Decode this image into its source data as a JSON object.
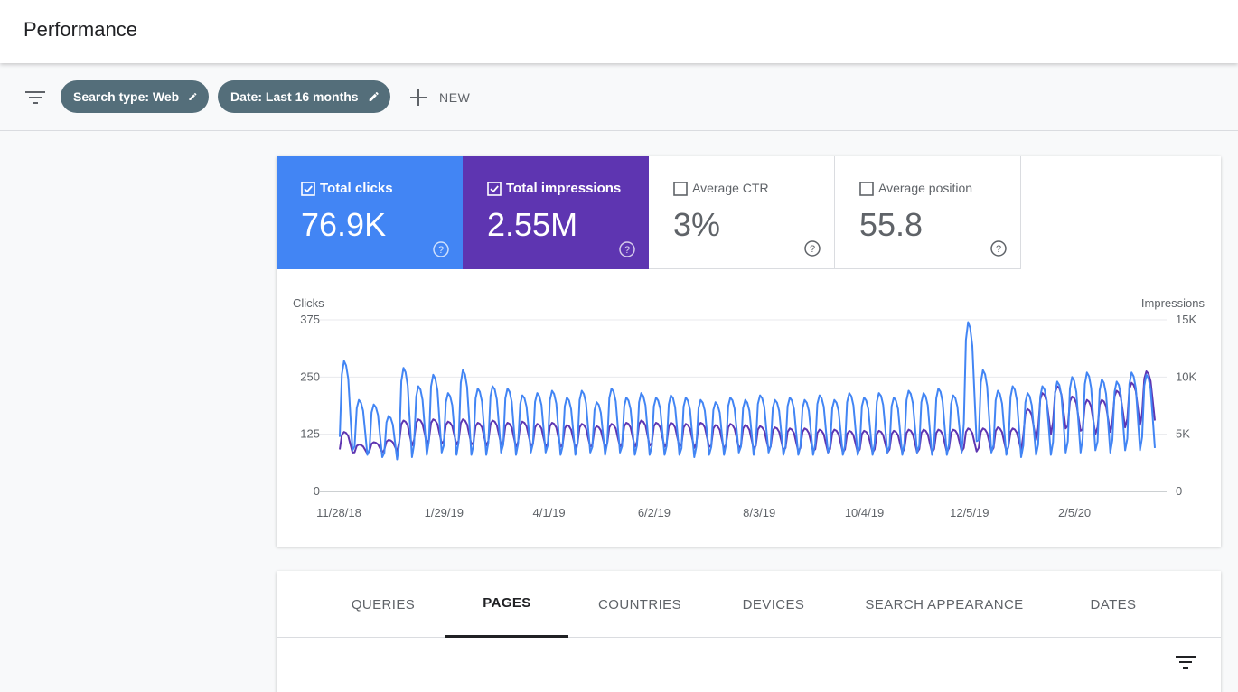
{
  "header": {
    "title": "Performance"
  },
  "filters": {
    "search_type": "Search type: Web",
    "date": "Date: Last 16 months",
    "new_label": "NEW"
  },
  "metrics": [
    {
      "label": "Total clicks",
      "value": "76.9K",
      "checked": true,
      "color": "#4285f4"
    },
    {
      "label": "Total impressions",
      "value": "2.55M",
      "checked": true,
      "color": "#5e35b1"
    },
    {
      "label": "Average CTR",
      "value": "3%",
      "checked": false
    },
    {
      "label": "Average position",
      "value": "55.8",
      "checked": false
    }
  ],
  "chart_data": {
    "type": "line",
    "x_tick_labels": [
      "11/28/18",
      "1/29/19",
      "4/1/19",
      "6/2/19",
      "8/3/19",
      "10/4/19",
      "12/5/19",
      "2/5/20"
    ],
    "left_axis": {
      "label": "Clicks",
      "ticks": [
        "375",
        "250",
        "125",
        "0"
      ],
      "range": [
        0,
        375
      ]
    },
    "right_axis": {
      "label": "Impressions",
      "ticks": [
        "15K",
        "10K",
        "5K",
        "0"
      ],
      "range": [
        0,
        15000
      ]
    },
    "series": [
      {
        "name": "Total clicks",
        "color": "#4285f4",
        "axis": "left",
        "weekly_peaks": [
          285,
          200,
          190,
          165,
          270,
          230,
          255,
          215,
          265,
          225,
          230,
          225,
          210,
          215,
          220,
          205,
          220,
          195,
          225,
          205,
          215,
          205,
          210,
          205,
          200,
          195,
          205,
          200,
          210,
          200,
          205,
          200,
          210,
          200,
          215,
          205,
          215,
          205,
          220,
          215,
          225,
          210,
          370,
          265,
          220,
          230,
          215,
          230,
          240,
          250,
          260,
          245,
          240,
          260,
          255
        ],
        "weekly_lows": [
          90,
          80,
          75,
          70,
          75,
          80,
          85,
          80,
          80,
          80,
          85,
          80,
          85,
          85,
          80,
          80,
          85,
          80,
          85,
          80,
          80,
          80,
          80,
          75,
          80,
          80,
          85,
          80,
          85,
          80,
          80,
          80,
          85,
          80,
          80,
          80,
          85,
          80,
          85,
          80,
          80,
          85,
          110,
          85,
          80,
          75,
          80,
          80,
          85,
          85,
          90,
          85,
          90,
          90,
          95
        ]
      },
      {
        "name": "Total impressions",
        "color": "#5e35b1",
        "axis": "right",
        "weekly_peaks": [
          5200,
          4100,
          4300,
          4500,
          6200,
          6300,
          6300,
          6100,
          6300,
          6000,
          6200,
          6000,
          6100,
          5900,
          6000,
          5800,
          5900,
          5700,
          5900,
          6000,
          6200,
          6000,
          6000,
          5900,
          6000,
          5800,
          5900,
          5800,
          5700,
          5600,
          5500,
          5500,
          5400,
          5400,
          5300,
          5300,
          5300,
          5300,
          5400,
          5400,
          5400,
          5400,
          5500,
          5500,
          5600,
          5500,
          7200,
          8600,
          9200,
          8300,
          8000,
          8000,
          8800,
          9500,
          10500
        ],
        "weekly_lows": [
          3400,
          3300,
          3400,
          3500,
          4000,
          4200,
          4200,
          4100,
          4100,
          4000,
          4100,
          3900,
          4000,
          3900,
          3900,
          3800,
          3900,
          3800,
          3900,
          3900,
          4000,
          3900,
          3900,
          3800,
          3900,
          3700,
          3800,
          3700,
          3700,
          3600,
          3500,
          3500,
          3400,
          3400,
          3400,
          3400,
          3400,
          3400,
          3400,
          3400,
          3400,
          3500,
          3500,
          3500,
          3500,
          3600,
          4500,
          5000,
          5500,
          5300,
          5000,
          5200,
          5600,
          5800,
          6200
        ]
      }
    ],
    "grid": true,
    "legend": "none"
  },
  "tabs": [
    {
      "label": "QUERIES"
    },
    {
      "label": "PAGES",
      "active": true
    },
    {
      "label": "COUNTRIES"
    },
    {
      "label": "DEVICES"
    },
    {
      "label": "SEARCH APPEARANCE"
    },
    {
      "label": "DATES"
    }
  ]
}
